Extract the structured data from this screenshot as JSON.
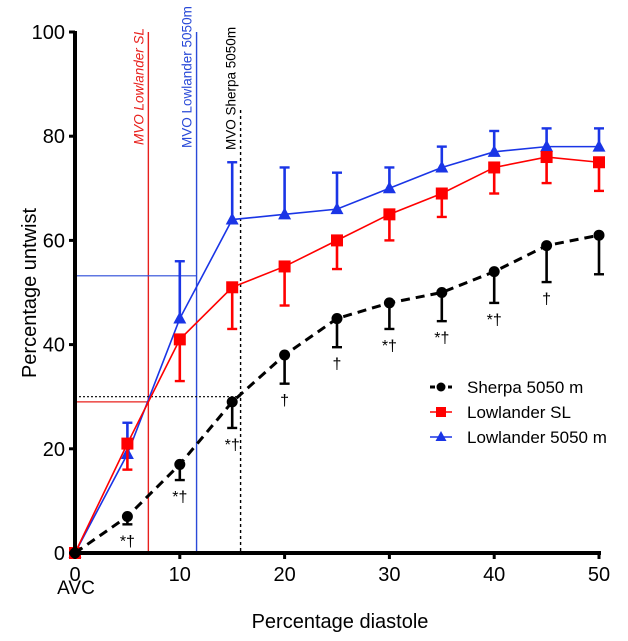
{
  "chart_data": {
    "type": "line",
    "title": "",
    "xlabel": "Percentage diastole",
    "ylabel": "Percentage untwist",
    "x_sublabel": "AVC",
    "xlim": [
      0,
      50
    ],
    "ylim": [
      0,
      100
    ],
    "xticks": [
      0,
      10,
      20,
      30,
      40,
      50
    ],
    "yticks": [
      0,
      20,
      40,
      60,
      80,
      100
    ],
    "x": [
      0,
      5,
      10,
      15,
      20,
      25,
      30,
      35,
      40,
      45,
      50
    ],
    "grid": false,
    "legend_position": "right-middle",
    "series": [
      {
        "name": "Sherpa 5050 m",
        "color": "#000000",
        "marker": "circle",
        "line": "dashed",
        "values": [
          0,
          7,
          17,
          29,
          38,
          45,
          48,
          50,
          54,
          59,
          61
        ],
        "error_lower": [
          0,
          1.5,
          3,
          5,
          5.5,
          5.5,
          5,
          5.5,
          6,
          7,
          7.5
        ],
        "error_direction": "down",
        "annotations": [
          "",
          "*†",
          "*†",
          "*†",
          "†",
          "†",
          "*†",
          "*†",
          "*†",
          "†",
          ""
        ]
      },
      {
        "name": "Lowlander SL",
        "color": "#ff0000",
        "marker": "square",
        "line": "solid",
        "values": [
          0,
          21,
          41,
          51,
          55,
          60,
          65,
          69,
          74,
          76,
          75
        ],
        "error_lower": [
          0,
          5,
          8,
          8,
          7.5,
          5.5,
          5,
          4.5,
          5,
          5,
          5.5
        ],
        "error_direction": "down"
      },
      {
        "name": "Lowlander 5050 m",
        "color": "#1a35e6",
        "marker": "triangle",
        "line": "solid",
        "values": [
          0,
          19,
          45,
          64,
          65,
          66,
          70,
          74,
          77,
          78,
          78
        ],
        "error_upper": [
          0,
          6,
          11,
          11,
          9,
          7,
          4,
          4,
          4,
          3.5,
          3.5
        ],
        "error_direction": "up"
      }
    ],
    "reference_lines": [
      {
        "label": "MVO Lowlander SL",
        "x": 7,
        "y": 29,
        "color": "#e8201c",
        "style": "solid",
        "italic": true
      },
      {
        "label": "MVO Lowlander 5050m",
        "x": 11.6,
        "y": 53.2,
        "color": "#2a4ad8",
        "style": "solid",
        "italic": false
      },
      {
        "label": "MVO Sherpa 5050m",
        "x": 15.8,
        "y": 30,
        "color": "#000000",
        "style": "dotted",
        "italic": false
      }
    ]
  }
}
